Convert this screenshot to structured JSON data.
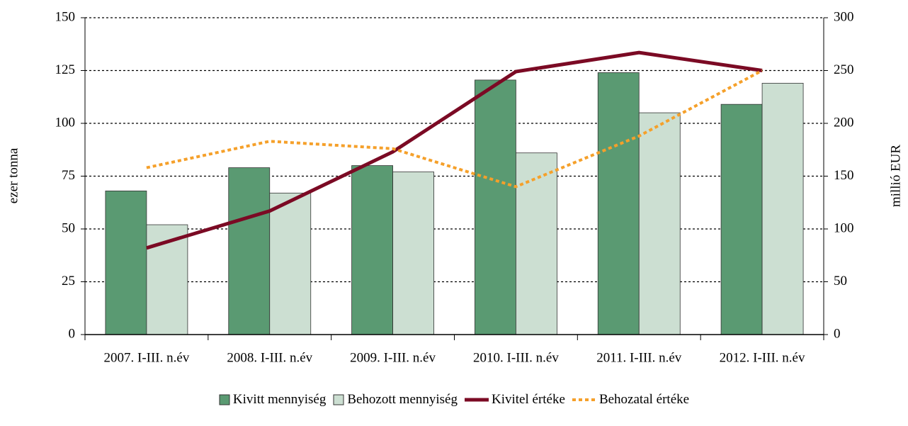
{
  "chart_data": {
    "type": "bar-line",
    "categories": [
      "2007. I-III. n.év",
      "2008. I-III. n.év",
      "2009. I-III. n.év",
      "2010. I-III. n.év",
      "2011. I-III. n.év",
      "2012. I-III. n.év"
    ],
    "ylabel": "ezer tonna",
    "y2label": "millió EUR",
    "ylim": [
      0,
      150
    ],
    "yticks": [
      0,
      25,
      50,
      75,
      100,
      125,
      150
    ],
    "y2lim": [
      0,
      300
    ],
    "y2ticks": [
      0,
      50,
      100,
      150,
      200,
      250,
      300
    ],
    "grid": true,
    "legend": "bottom",
    "series": [
      {
        "name": "Kivitt mennyiség",
        "type": "bar",
        "color": "#5a9a72",
        "values": [
          68,
          79,
          80,
          120.5,
          124,
          109
        ]
      },
      {
        "name": "Behozott mennyiség",
        "type": "bar",
        "color": "#ccdfd2",
        "values": [
          52,
          67,
          77,
          86,
          105,
          119
        ]
      },
      {
        "name": "Kivitel értéke",
        "type": "line",
        "axis": "y2",
        "color": "#7b0a24",
        "values": [
          82,
          117,
          173,
          249,
          267,
          250
        ]
      },
      {
        "name": "Behozatal értéke",
        "type": "line",
        "axis": "y2",
        "color": "#f5a02a",
        "dashed": true,
        "values": [
          158,
          183,
          176,
          140,
          188,
          250
        ]
      }
    ]
  }
}
